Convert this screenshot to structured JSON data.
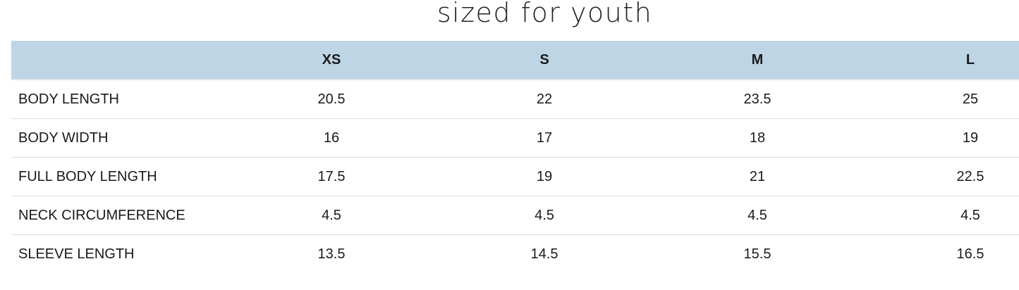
{
  "title": "sized for youth",
  "table": {
    "headers": [
      "",
      "XS",
      "S",
      "M",
      "L"
    ],
    "rows": [
      {
        "label": "BODY LENGTH",
        "values": [
          "20.5",
          "22",
          "23.5",
          "25"
        ]
      },
      {
        "label": "BODY WIDTH",
        "values": [
          "16",
          "17",
          "18",
          "19"
        ]
      },
      {
        "label": "FULL BODY LENGTH",
        "values": [
          "17.5",
          "19",
          "21",
          "22.5"
        ]
      },
      {
        "label": "NECK CIRCUMFERENCE",
        "values": [
          "4.5",
          "4.5",
          "4.5",
          "4.5"
        ]
      },
      {
        "label": "SLEEVE LENGTH",
        "values": [
          "13.5",
          "14.5",
          "15.5",
          "16.5"
        ]
      }
    ]
  },
  "colors": {
    "header_bg": "#bed5e6"
  }
}
